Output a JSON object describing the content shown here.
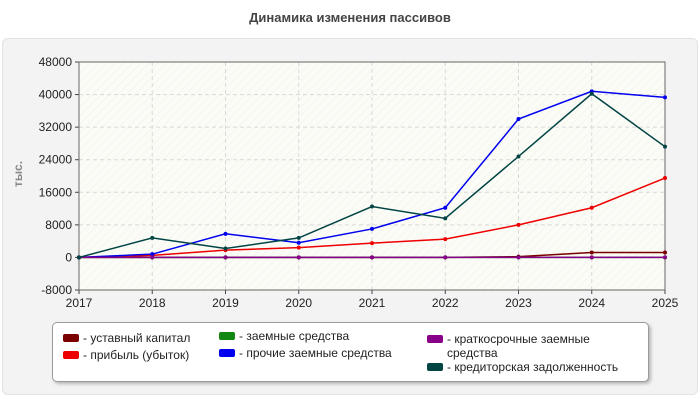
{
  "chart_data": {
    "type": "line",
    "title": "Динамика изменения пассивов",
    "ylabel": "тыс.",
    "xlabel": "",
    "x": [
      "2017",
      "2018",
      "2019",
      "2020",
      "2021",
      "2022",
      "2023",
      "2024",
      "2025"
    ],
    "ylim": [
      -8000,
      48000
    ],
    "yticks": [
      -8000,
      0,
      8000,
      16000,
      24000,
      32000,
      40000,
      48000
    ],
    "ytick_labels": [
      "-8000",
      "0",
      "8000",
      "16000",
      "24000",
      "32000",
      "40000",
      "48000"
    ],
    "grid": true,
    "legend_position": "bottom",
    "series": [
      {
        "name": "- уставный капитал",
        "color": "#7a0000",
        "values": [
          0,
          0,
          0,
          0,
          0,
          0,
          200,
          1200,
          1200
        ]
      },
      {
        "name": "- прибыль (убыток)",
        "color": "#ee0000",
        "values": [
          0,
          500,
          1800,
          2400,
          3500,
          4500,
          8000,
          12200,
          19500
        ]
      },
      {
        "name": "- заемные средства",
        "color": "#118811",
        "values": [
          0,
          0,
          0,
          0,
          0,
          0,
          0,
          0,
          0
        ]
      },
      {
        "name": "- прочие заемные средства",
        "color": "#0000ee",
        "values": [
          0,
          800,
          5800,
          3600,
          7000,
          12200,
          34000,
          40800,
          39300
        ]
      },
      {
        "name": "- краткосрочные заемные средства",
        "color": "#880088",
        "values": [
          0,
          0,
          0,
          0,
          0,
          0,
          0,
          0,
          0
        ]
      },
      {
        "name": "- кредиторская задолженность",
        "color": "#004444",
        "values": [
          0,
          4800,
          2200,
          4800,
          12500,
          9600,
          24800,
          40200,
          27200
        ]
      }
    ]
  }
}
